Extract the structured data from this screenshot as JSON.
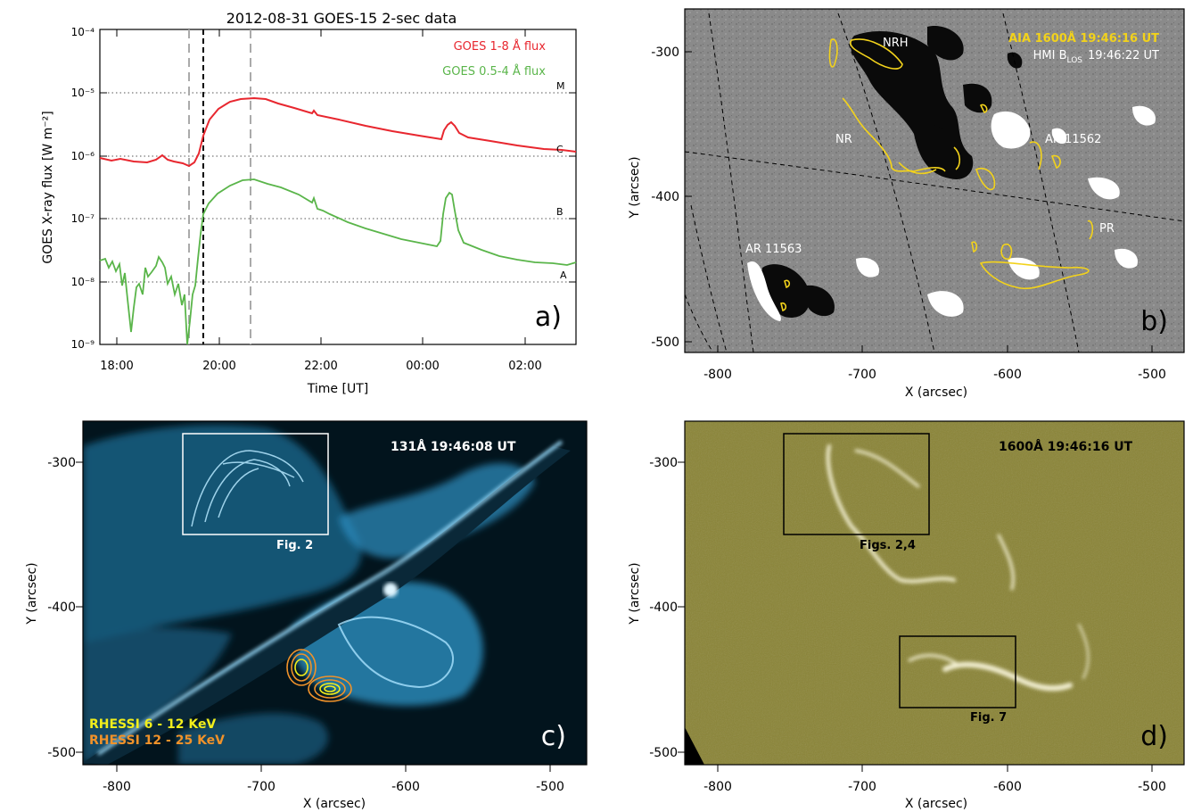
{
  "panel_a": {
    "title": "2012-08-31    GOES-15    2-sec data",
    "ylabel": "GOES X-ray flux [W m⁻²]",
    "xlabel": "Time [UT]",
    "legend": [
      {
        "label": "GOES    1-8 Å flux",
        "color": "#e8272f"
      },
      {
        "label": "GOES 0.5-4 Å flux",
        "color": "#5ab54a"
      }
    ],
    "xticks": [
      "18:00",
      "20:00",
      "22:00",
      "00:00",
      "02:00"
    ],
    "yticks": [
      "10⁻⁹",
      "10⁻⁸",
      "10⁻⁷",
      "10⁻⁶",
      "10⁻⁵",
      "10⁻⁴"
    ],
    "class_labels": [
      "A",
      "B",
      "C",
      "M"
    ],
    "panel_label": "a)"
  },
  "panel_b": {
    "label_aia": "AIA 1600Å 19:46:16 UT",
    "label_hmi": "HMI B",
    "label_hmi_sub": "LOS",
    "label_hmi_time": "19:46:22 UT",
    "regions": [
      "NRH",
      "NR",
      "AR 11562",
      "PR",
      "AR 11563"
    ],
    "panel_label": "b)",
    "xticks": [
      "-800",
      "-700",
      "-600",
      "-500"
    ],
    "yticks": [
      "-300",
      "-400",
      "-500"
    ],
    "xlabel": "X (arcsec)",
    "ylabel": "Y (arcsec)",
    "colors": {
      "contour": "#f2d21b",
      "label_aia": "#f2d21b",
      "label": "#ffffff"
    }
  },
  "panel_c": {
    "label": "131Å 19:46:08 UT",
    "box_label": "Fig. 2",
    "rhessi_low": "RHESSI 6 - 12 KeV",
    "rhessi_high": "RHESSI 12 - 25 KeV",
    "panel_label": "c)",
    "xticks": [
      "-800",
      "-700",
      "-600",
      "-500"
    ],
    "yticks": [
      "-300",
      "-400",
      "-500"
    ],
    "xlabel": "X (arcsec)",
    "ylabel": "Y (arcsec)",
    "colors": {
      "rhessi_low": "#f2ee1b",
      "rhessi_high": "#f0922a"
    }
  },
  "panel_d": {
    "label": "1600Å 19:46:16 UT",
    "box1_label": "Figs. 2,4",
    "box2_label": "Fig. 7",
    "panel_label": "d)",
    "xticks": [
      "-800",
      "-700",
      "-600",
      "-500"
    ],
    "yticks": [
      "-300",
      "-400",
      "-500"
    ],
    "xlabel": "X (arcsec)",
    "ylabel": "Y (arcsec)"
  }
}
